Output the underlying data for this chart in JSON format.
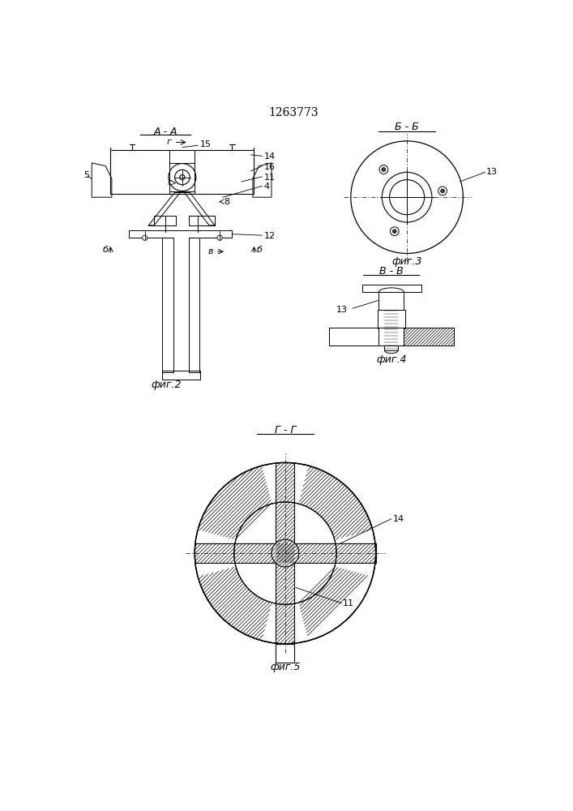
{
  "title": "1263773",
  "bg_color": "#ffffff",
  "line_color": "#000000",
  "fig2_label": "А - А",
  "fig3_label": "Б - Б",
  "fig4_label": "В - В",
  "fig5_label": "Г - Г",
  "fig2_caption": "фиг.2",
  "fig3_caption": "фиг.3",
  "fig4_caption": "фиг.4",
  "fig5_caption": "фиг.5"
}
